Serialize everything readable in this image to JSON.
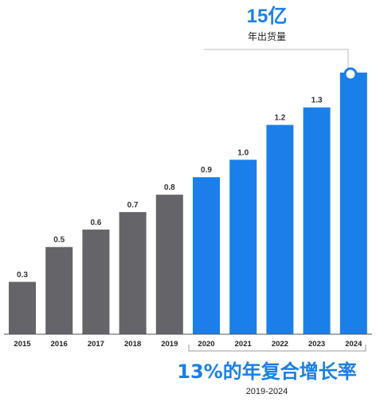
{
  "colors": {
    "gray_bar": "#646469",
    "blue_bar": "#1a7fe8",
    "bracket": "#bdbdbd",
    "axis": "#555555"
  },
  "callout": {
    "value": "15亿",
    "caption": "年出货量"
  },
  "cagr": {
    "title": "13%的年复合增长率",
    "range": "2019-2024"
  },
  "chart_data": {
    "type": "bar",
    "categories": [
      "2015",
      "2016",
      "2017",
      "2018",
      "2019",
      "2020",
      "2021",
      "2022",
      "2023",
      "2024"
    ],
    "values": [
      0.3,
      0.5,
      0.6,
      0.7,
      0.8,
      0.9,
      1.0,
      1.2,
      1.3,
      1.5
    ],
    "data_labels": [
      "0.3",
      "0.5",
      "0.6",
      "0.7",
      "0.8",
      "0.9",
      "1.0",
      "1.2",
      "1.3",
      ""
    ],
    "highlight_from_index": 5,
    "title": "",
    "xlabel": "",
    "ylabel": "",
    "ylim": [
      0,
      1.5
    ],
    "grid": false,
    "legend": "none"
  }
}
